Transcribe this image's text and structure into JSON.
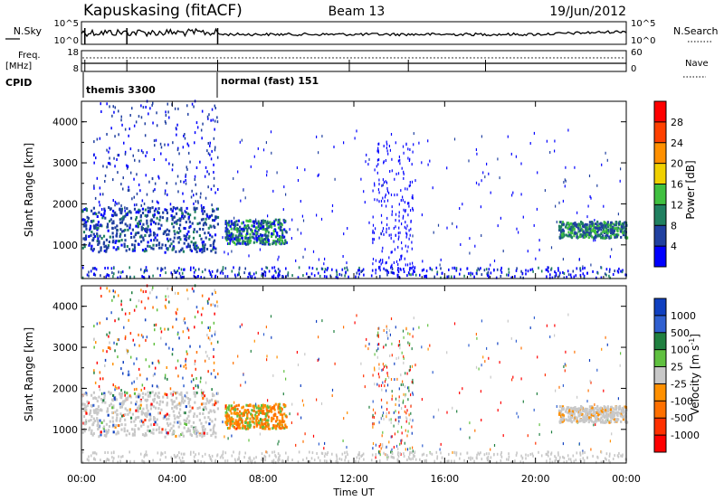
{
  "header": {
    "station": "Kapuskasing (fitACF)",
    "beam": "Beam 13",
    "date": "19/Jun/2012"
  },
  "summary_panel": {
    "left_labels": {
      "nsky": "N.Sky",
      "freq": "Freq.",
      "freq_unit": "[MHz]",
      "cpid": "CPID"
    },
    "right_labels": {
      "nsearch": "N.Search",
      "nave": "Nave"
    },
    "noise_ticks_left": [
      "10^5",
      "10^0"
    ],
    "noise_ticks_right": [
      "10^5",
      "10^0"
    ],
    "freq_ticks": [
      "18",
      "8"
    ],
    "nave_ticks": [
      "60",
      "0"
    ],
    "cpid_segments": [
      {
        "label": "themis 3300",
        "start_hour": 0,
        "end_hour": 6
      },
      {
        "label": "normal (fast) 151",
        "start_hour": 6,
        "end_hour": 24
      }
    ]
  },
  "chart_data": [
    {
      "type": "heatmap",
      "parameter": "Power",
      "xlabel": "",
      "ylabel": "Slant Range [km]",
      "xlim": [
        0,
        24
      ],
      "ylim": [
        180,
        4500
      ],
      "yticks": [
        "1000",
        "2000",
        "3000",
        "4000"
      ],
      "colorbar_label": "Power [dB]",
      "colorbar_ticks": [
        "4",
        "8",
        "12",
        "16",
        "20",
        "24",
        "28"
      ],
      "colorbar_colors": [
        "#0000ff",
        "#2040a0",
        "#208060",
        "#40c040",
        "#f0d000",
        "#ff9000",
        "#ff4000",
        "#ff0000"
      ],
      "regions": [
        {
          "start_hour": 0.0,
          "end_hour": 6.0,
          "range_km": [
            800,
            1900
          ],
          "dominant": "6-12 dB"
        },
        {
          "start_hour": 0.5,
          "end_hour": 6.0,
          "range_km": [
            1800,
            4500
          ],
          "dominant": "4-8 dB sparse"
        },
        {
          "start_hour": 6.3,
          "end_hour": 9.0,
          "range_km": [
            1000,
            1600
          ],
          "dominant": "4-14 dB"
        },
        {
          "start_hour": 13.0,
          "end_hour": 14.5,
          "range_km": [
            300,
            3500
          ],
          "dominant": "4 dB sparse"
        },
        {
          "start_hour": 21.0,
          "end_hour": 24.0,
          "range_km": [
            1150,
            1550
          ],
          "dominant": "8-16 dB"
        },
        {
          "start_hour": 0.0,
          "end_hour": 24.0,
          "range_km": [
            180,
            400
          ],
          "dominant": "4-12 dB ground"
        }
      ]
    },
    {
      "type": "heatmap",
      "parameter": "Velocity",
      "xlabel": "Time UT",
      "ylabel": "Slant Range [km]",
      "xlim": [
        0,
        24
      ],
      "ylim": [
        180,
        4500
      ],
      "xticks": [
        "00:00",
        "04:00",
        "08:00",
        "12:00",
        "16:00",
        "20:00",
        "00:00"
      ],
      "yticks": [
        "1000",
        "2000",
        "3000",
        "4000"
      ],
      "colorbar_label": "Velocity [m s^-1]",
      "colorbar_ticks": [
        "1000",
        "500",
        "100",
        "25",
        "-25",
        "-100",
        "-500",
        "-1000"
      ],
      "colorbar_colors": [
        "#1040c0",
        "#3060d0",
        "#208040",
        "#60c040",
        "#c8c8c8",
        "#ff9000",
        "#ff7000",
        "#ff3000",
        "#ff0000"
      ],
      "regions": [
        {
          "start_hour": 0.0,
          "end_hour": 6.0,
          "range_km": [
            800,
            1900
          ],
          "dominant": "-25 to 25 (ground scatter grey)"
        },
        {
          "start_hour": 6.3,
          "end_hour": 9.0,
          "range_km": [
            1000,
            1600
          ],
          "dominant": "-100 to -500"
        },
        {
          "start_hour": 21.0,
          "end_hour": 24.0,
          "range_km": [
            1150,
            1550
          ],
          "dominant": "-25 to 25 grey"
        },
        {
          "start_hour": 0.0,
          "end_hour": 24.0,
          "range_km": [
            180,
            400
          ],
          "dominant": "-25 to 25 grey"
        }
      ]
    }
  ]
}
